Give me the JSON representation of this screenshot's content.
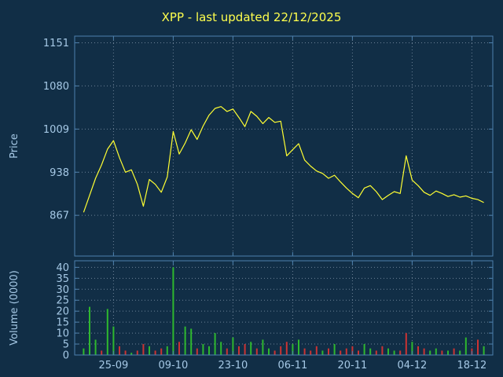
{
  "colors": {
    "background": "#112e46",
    "border": "#4d80ad",
    "tick_text": "#a6c9e6",
    "title": "#ffff4d",
    "price_line": "#ffff33",
    "volume_up": "#2eb82e",
    "volume_down": "#cc3333"
  },
  "xaxis": {
    "xlim": [
      -1.5,
      68.5
    ],
    "tick_positions": [
      5,
      15,
      25,
      35,
      45,
      55,
      65
    ],
    "tick_labels": [
      "25-09",
      "09-10",
      "23-10",
      "06-11",
      "20-11",
      "04-12",
      "18-12"
    ]
  },
  "chart_data": [
    {
      "type": "line",
      "name": "price",
      "title": "XPP - last updated 22/12/2025",
      "xlabel": "",
      "ylabel": "Price",
      "grid": true,
      "legend": "none",
      "ylim": [
        800,
        1162
      ],
      "yticks": [
        867,
        938,
        1009,
        1080,
        1151
      ],
      "values": [
        872,
        900,
        928,
        950,
        976,
        990,
        962,
        938,
        942,
        918,
        882,
        926,
        918,
        905,
        930,
        1005,
        968,
        986,
        1008,
        992,
        1014,
        1032,
        1043,
        1046,
        1038,
        1042,
        1028,
        1013,
        1038,
        1030,
        1018,
        1028,
        1020,
        1022,
        965,
        975,
        985,
        958,
        948,
        940,
        936,
        928,
        933,
        922,
        912,
        903,
        896,
        912,
        916,
        906,
        893,
        900,
        906,
        903,
        965,
        925,
        916,
        905,
        900,
        907,
        903,
        898,
        901,
        897,
        899,
        895,
        893,
        888
      ]
    },
    {
      "type": "bar",
      "name": "volume",
      "xlabel": "",
      "ylabel": "Volume (0000)",
      "grid": true,
      "legend": "none",
      "ylim": [
        0,
        43
      ],
      "yticks": [
        0,
        5,
        10,
        15,
        20,
        25,
        30,
        35,
        40
      ],
      "values": [
        3,
        22,
        7,
        2,
        21,
        13,
        4,
        2,
        1,
        2,
        5,
        4,
        2,
        3,
        4,
        40,
        6,
        13,
        12,
        3,
        5,
        4,
        10,
        6,
        3,
        8,
        4,
        5,
        6,
        3,
        7,
        3,
        2,
        4,
        6,
        5,
        7,
        3,
        2,
        4,
        2,
        3,
        5,
        2,
        3,
        4,
        2,
        5,
        3,
        2,
        4,
        3,
        2,
        2,
        10,
        6,
        4,
        3,
        2,
        3,
        2,
        2,
        3,
        2,
        8,
        3,
        7,
        4
      ],
      "bar_colors": [
        "g",
        "g",
        "g",
        "r",
        "g",
        "g",
        "r",
        "r",
        "g",
        "r",
        "r",
        "g",
        "r",
        "r",
        "g",
        "g",
        "r",
        "g",
        "g",
        "r",
        "g",
        "g",
        "g",
        "g",
        "r",
        "g",
        "r",
        "r",
        "g",
        "r",
        "g",
        "g",
        "r",
        "r",
        "r",
        "g",
        "g",
        "r",
        "r",
        "r",
        "g",
        "r",
        "g",
        "r",
        "r",
        "r",
        "r",
        "g",
        "g",
        "r",
        "r",
        "g",
        "g",
        "r",
        "r",
        "g",
        "r",
        "r",
        "g",
        "g",
        "r",
        "g",
        "r",
        "g",
        "g",
        "r",
        "r",
        "g"
      ]
    }
  ]
}
